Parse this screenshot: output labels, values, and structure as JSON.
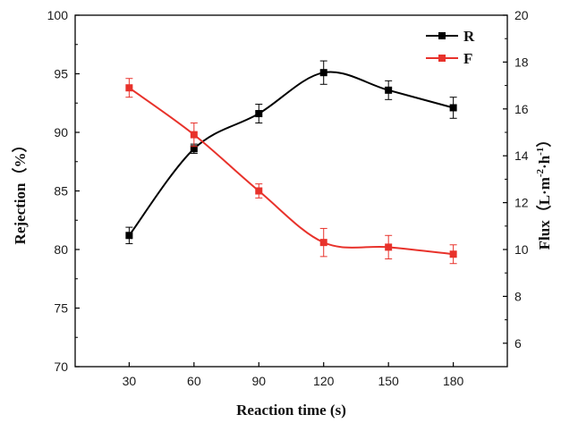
{
  "chart_data": {
    "type": "line",
    "title": "",
    "xlabel": "Reaction time (s)",
    "ylabel_left": "Rejection（%）",
    "ylabel_right": {
      "prefix": "Flux（L·m",
      "sup1": "-2",
      "mid": "·h",
      "sup2": "-1",
      "suffix": "）"
    },
    "x": [
      30,
      60,
      90,
      120,
      150,
      180
    ],
    "x_ticks": [
      "30",
      "60",
      "90",
      "120",
      "150",
      "180"
    ],
    "xlim": [
      5,
      205
    ],
    "ylim_left": [
      70,
      100
    ],
    "yticks_left": [
      "70",
      "75",
      "80",
      "85",
      "90",
      "95",
      "100"
    ],
    "ylim_right": [
      5,
      20
    ],
    "yticks_right": [
      "6",
      "8",
      "10",
      "12",
      "14",
      "16",
      "18",
      "20"
    ],
    "grid": false,
    "legend_position": "top-right",
    "series": [
      {
        "name": "R",
        "axis": "left",
        "color": "#000000",
        "marker": "square",
        "values": [
          81.2,
          88.6,
          91.6,
          95.1,
          93.6,
          92.1
        ],
        "error": [
          0.7,
          0.4,
          0.8,
          1.0,
          0.8,
          0.9
        ]
      },
      {
        "name": "F",
        "axis": "right",
        "color": "#e8322b",
        "marker": "square",
        "values": [
          16.9,
          14.9,
          12.5,
          10.3,
          10.1,
          9.8
        ],
        "error": [
          0.4,
          0.5,
          0.3,
          0.6,
          0.5,
          0.4
        ]
      }
    ]
  }
}
